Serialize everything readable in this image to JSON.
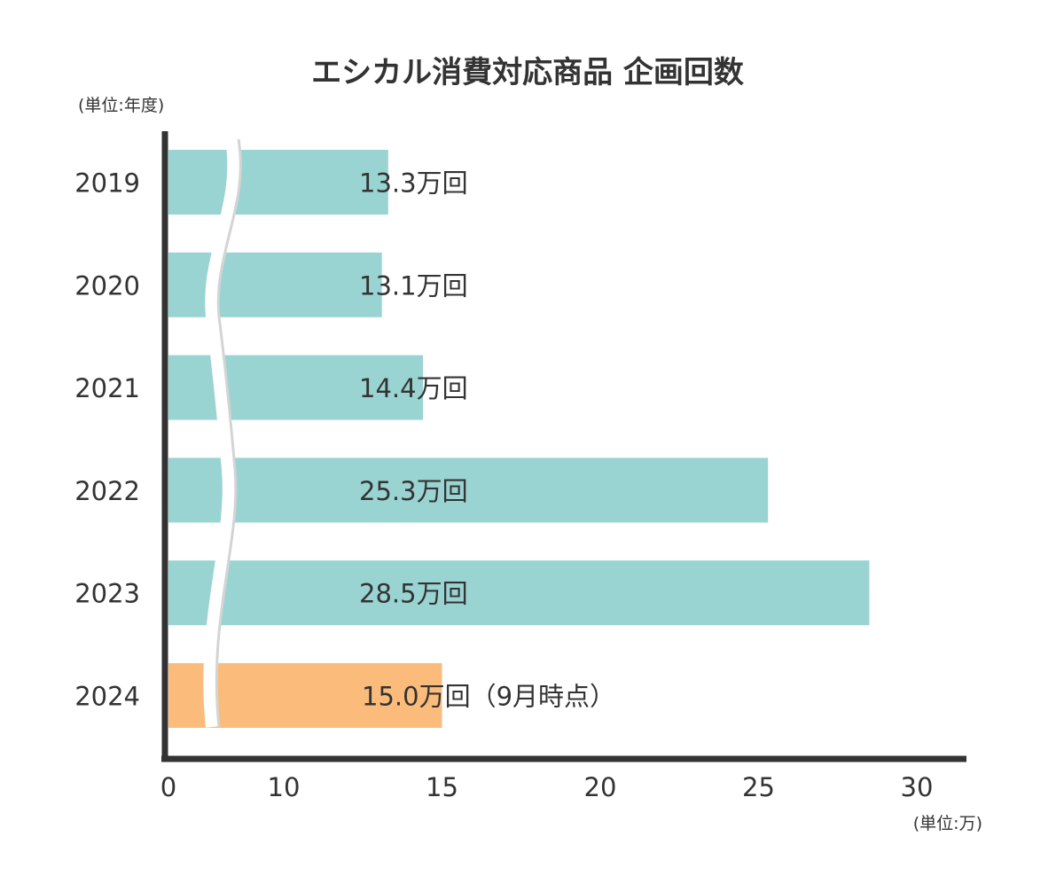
{
  "chart_data": {
    "type": "bar",
    "orientation": "horizontal",
    "title": "エシカル消費対応商品 企画回数",
    "y_unit_label": "(単位:年度)",
    "x_unit_label": "(単位:万)",
    "categories": [
      "2019",
      "2020",
      "2021",
      "2022",
      "2023",
      "2024"
    ],
    "values": [
      13.3,
      13.1,
      14.4,
      25.3,
      28.5,
      15.0
    ],
    "data_labels": [
      "13.3万回",
      "13.1万回",
      "14.4万回",
      "25.3万回",
      "28.5万回",
      "15.0万回（9月時点）"
    ],
    "x_ticks": [
      "0",
      "10",
      "15",
      "20",
      "25",
      "30"
    ],
    "x_tick_values": [
      0,
      10,
      15,
      20,
      25,
      30
    ],
    "axis_break": {
      "between": [
        0,
        10
      ]
    },
    "xlim": [
      0,
      31.5
    ],
    "grid": false,
    "colors": {
      "bar": "#99d4d2",
      "highlight_bar": "#fbbc7b",
      "axis": "#333333",
      "break_line": "#d4d4d4"
    },
    "highlight_category": "2024"
  }
}
